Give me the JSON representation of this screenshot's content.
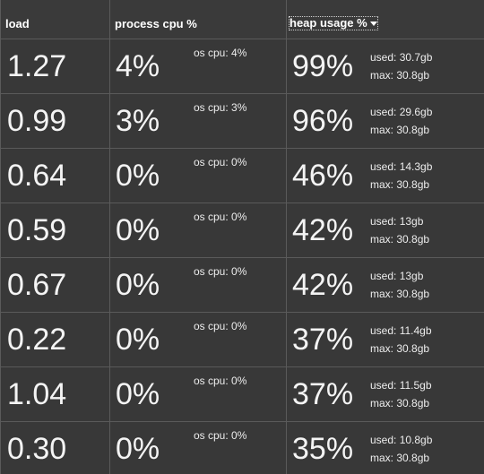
{
  "columns": {
    "load": "load",
    "process_cpu": "process cpu %",
    "heap_usage": "heap usage %"
  },
  "sort": {
    "column": "heap usage %",
    "direction": "descending",
    "icon": "caret-down-icon"
  },
  "os_cpu_prefix": "os cpu: ",
  "used_prefix": "used: ",
  "max_prefix": "max: ",
  "rows": [
    {
      "load": "1.27",
      "process_cpu": "4%",
      "os_cpu": "os cpu: 4%",
      "heap": "99%",
      "used": "used: 30.7gb",
      "max": "max: 30.8gb"
    },
    {
      "load": "0.99",
      "process_cpu": "3%",
      "os_cpu": "os cpu: 3%",
      "heap": "96%",
      "used": "used: 29.6gb",
      "max": "max: 30.8gb"
    },
    {
      "load": "0.64",
      "process_cpu": "0%",
      "os_cpu": "os cpu: 0%",
      "heap": "46%",
      "used": "used: 14.3gb",
      "max": "max: 30.8gb"
    },
    {
      "load": "0.59",
      "process_cpu": "0%",
      "os_cpu": "os cpu: 0%",
      "heap": "42%",
      "used": "used: 13gb",
      "max": "max: 30.8gb"
    },
    {
      "load": "0.67",
      "process_cpu": "0%",
      "os_cpu": "os cpu: 0%",
      "heap": "42%",
      "used": "used: 13gb",
      "max": "max: 30.8gb"
    },
    {
      "load": "0.22",
      "process_cpu": "0%",
      "os_cpu": "os cpu: 0%",
      "heap": "37%",
      "used": "used: 11.4gb",
      "max": "max: 30.8gb"
    },
    {
      "load": "1.04",
      "process_cpu": "0%",
      "os_cpu": "os cpu: 0%",
      "heap": "37%",
      "used": "used: 11.5gb",
      "max": "max: 30.8gb"
    },
    {
      "load": "0.30",
      "process_cpu": "0%",
      "os_cpu": "os cpu: 0%",
      "heap": "35%",
      "used": "used: 10.8gb",
      "max": "max: 30.8gb"
    }
  ],
  "colors": {
    "background": "#383838",
    "grid": "#5a5a5a",
    "text": "#f4f4f4"
  }
}
